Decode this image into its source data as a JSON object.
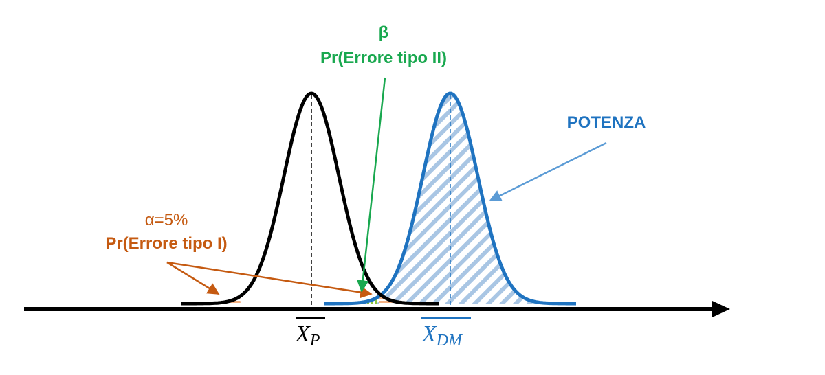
{
  "diagram": {
    "colors": {
      "null_curve": "#000000",
      "alt_curve": "#1F73C0",
      "alt_hatch": "#A9C6E4",
      "beta_green": "#19A84F",
      "beta_hatch": "#8CC63F",
      "alpha_orange": "#C55A11",
      "alpha_hatch": "#F4B183",
      "power_arrow": "#5B9BD5",
      "axis": "#000000"
    },
    "beta": {
      "symbol": "β",
      "label": "Pr(Errore tipo II)"
    },
    "alpha": {
      "symbol_text": "α=5%",
      "label": "Pr(Errore tipo I)"
    },
    "power": {
      "label": "POTENZA"
    },
    "mean_null": {
      "base": "X",
      "subscript": "P"
    },
    "mean_alt": {
      "base": "X",
      "subscript": "DM"
    }
  }
}
